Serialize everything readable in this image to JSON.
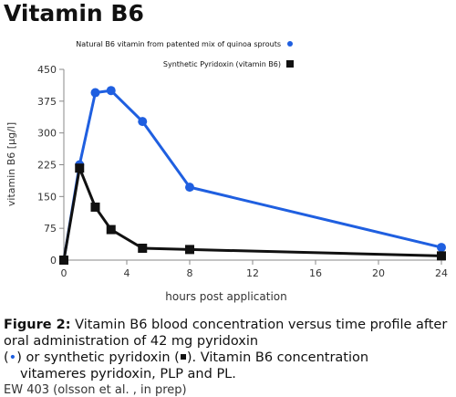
{
  "page_title": "Vitamin B6",
  "chart_data": {
    "type": "line",
    "title": "",
    "xlabel": "hours post application",
    "ylabel": "vitamin B6 [µg/l]",
    "xlim": [
      0,
      24
    ],
    "ylim": [
      0,
      450
    ],
    "xticks": [
      0,
      4,
      8,
      12,
      16,
      20,
      24
    ],
    "yticks": [
      0,
      75,
      150,
      225,
      300,
      375,
      450
    ],
    "grid": false,
    "legend_position": "top-right",
    "series": [
      {
        "name": "Natural B6 vitamin from patented mix of quinoa sprouts",
        "marker": "circle",
        "color": "#1f5fe0",
        "x": [
          0,
          1,
          2,
          3,
          5,
          8,
          24
        ],
        "y": [
          0,
          225,
          395,
          400,
          327,
          172,
          30
        ]
      },
      {
        "name": "Synthetic Pyridoxin (vitamin B6)",
        "marker": "square",
        "color": "#111111",
        "x": [
          0,
          1,
          2,
          3,
          5,
          8,
          24
        ],
        "y": [
          0,
          217,
          125,
          72,
          28,
          25,
          10
        ]
      }
    ]
  },
  "caption": {
    "label": "Figure 2:",
    "line1": " Vitamin B6 blood concentration versus time profile after",
    "line2": "oral administration of  42 mg pyridoxin",
    "line3_open": "(",
    "line3_dot": "•",
    "line3_mid": ") or synthetic pyridoxin (",
    "line3_close": "). Vitamin B6 concentration",
    "line4": "vitameres pyridoxin, PLP and PL.",
    "line5": "EW 403 (olsson et al. , in prep)"
  }
}
